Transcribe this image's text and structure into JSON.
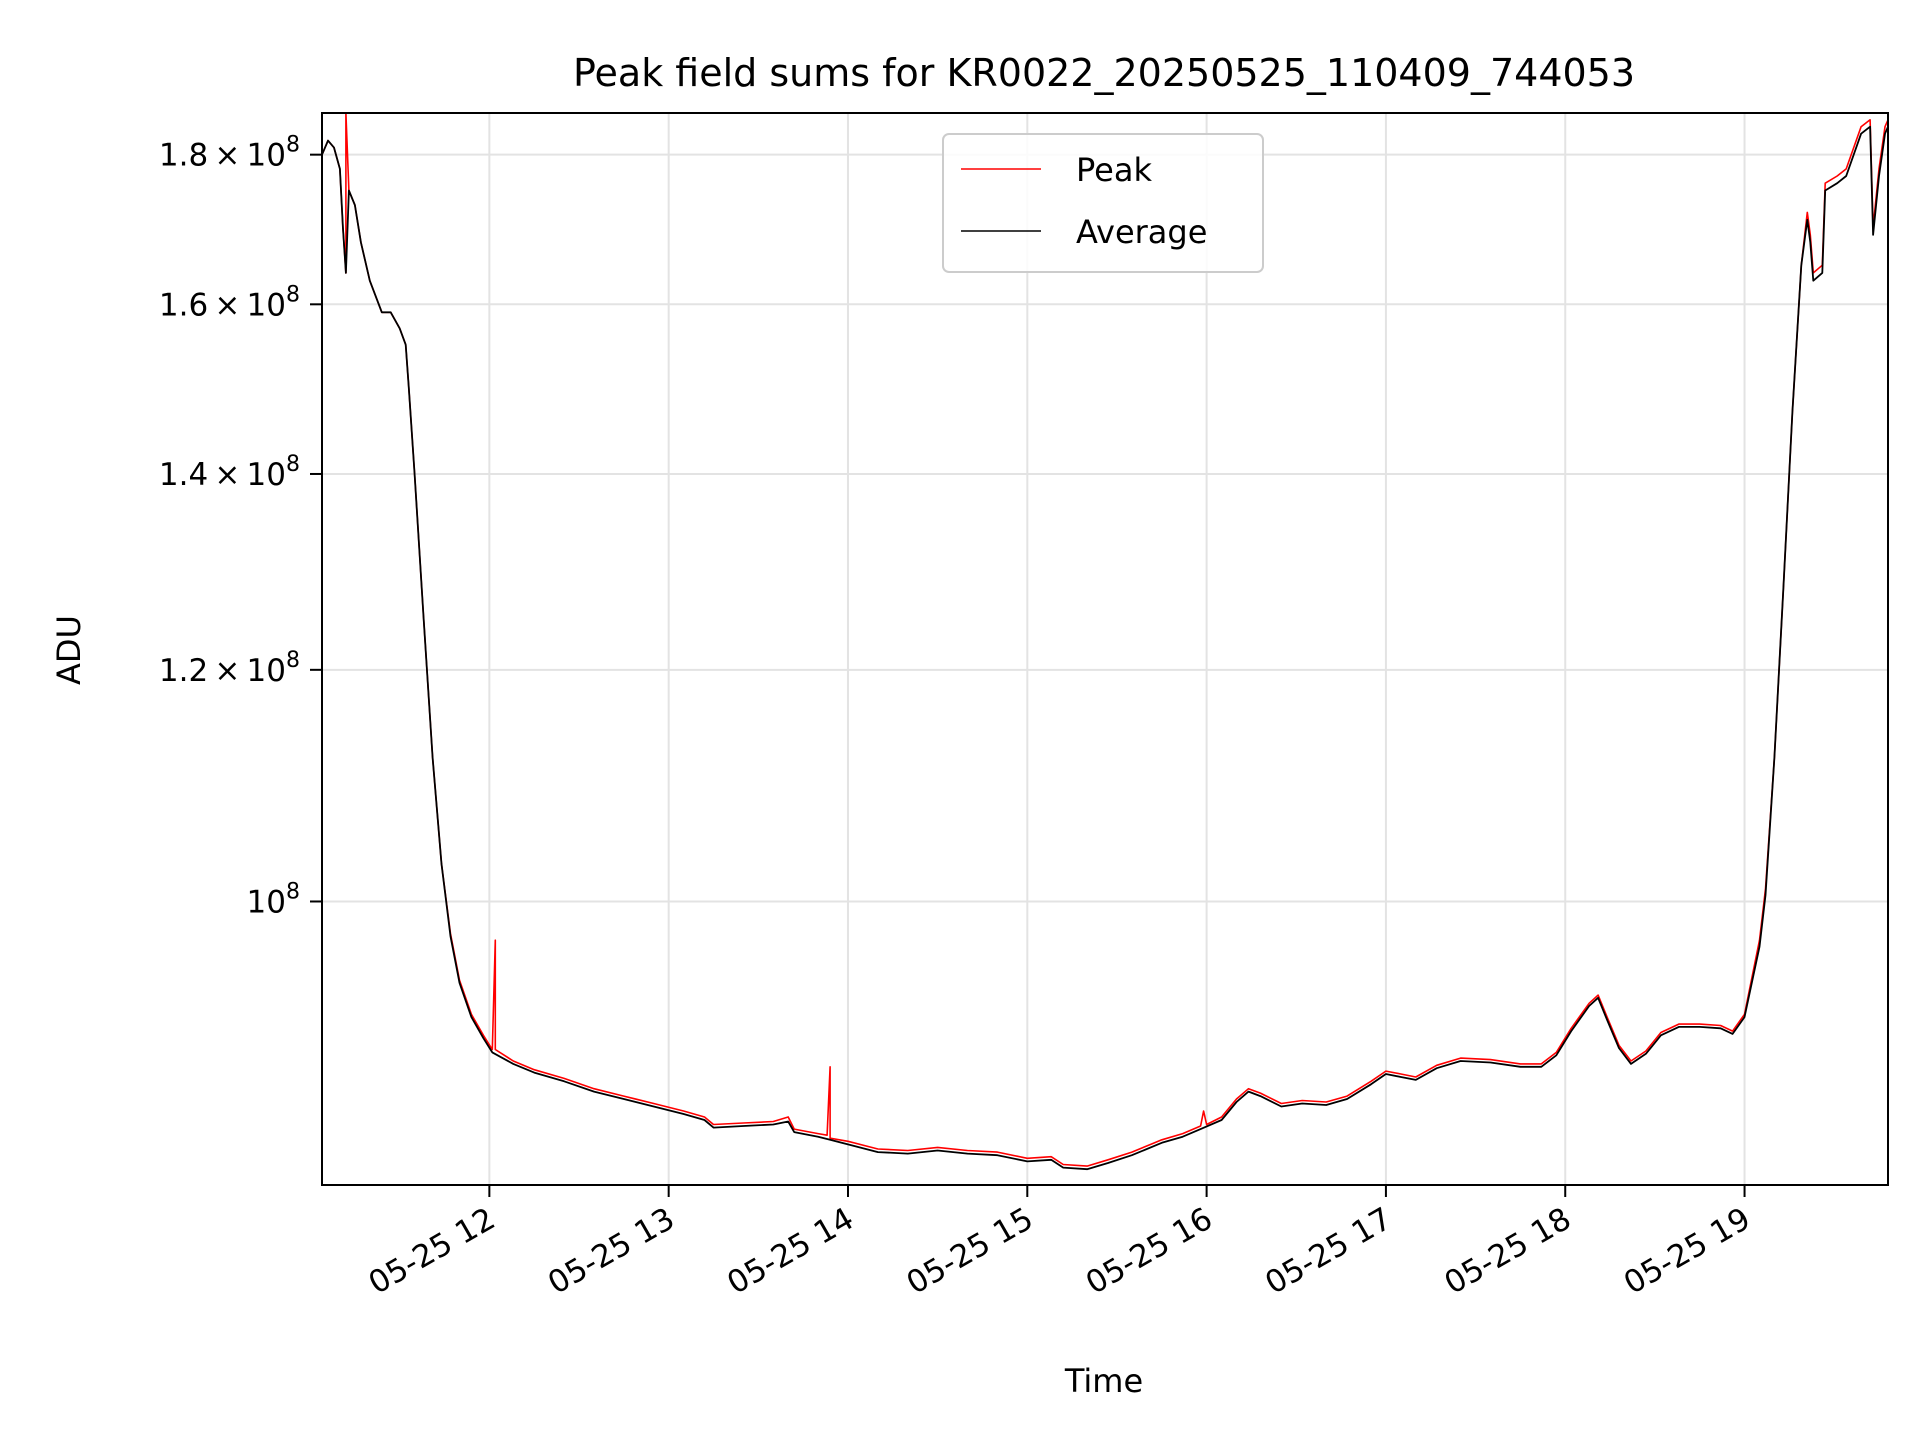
{
  "chart_data": {
    "type": "line",
    "title": "Peak field sums for KR0022_20250525_110409_744053",
    "xlabel": "Time",
    "ylabel": "ADU",
    "yscale": "log",
    "xlim": [
      "2025-05-25 11:04",
      "2025-05-25 19:48"
    ],
    "ylim": [
      80000000,
      186000000
    ],
    "grid": true,
    "legend_position": "upper center",
    "x_ticks": [
      {
        "value": "2025-05-25 12:00",
        "label": "05-25 12"
      },
      {
        "value": "2025-05-25 13:00",
        "label": "05-25 13"
      },
      {
        "value": "2025-05-25 14:00",
        "label": "05-25 14"
      },
      {
        "value": "2025-05-25 15:00",
        "label": "05-25 15"
      },
      {
        "value": "2025-05-25 16:00",
        "label": "05-25 16"
      },
      {
        "value": "2025-05-25 17:00",
        "label": "05-25 17"
      },
      {
        "value": "2025-05-25 18:00",
        "label": "05-25 18"
      },
      {
        "value": "2025-05-25 19:00",
        "label": "05-25 19"
      }
    ],
    "y_ticks": [
      {
        "value": 180000000,
        "mantissa": "1.8",
        "exponent": "8"
      },
      {
        "value": 160000000,
        "mantissa": "1.6",
        "exponent": "8"
      },
      {
        "value": 140000000,
        "mantissa": "1.4",
        "exponent": "8"
      },
      {
        "value": 120000000,
        "mantissa": "1.2",
        "exponent": "8"
      },
      {
        "value": 100000000,
        "mantissa": "",
        "exponent": "8"
      }
    ],
    "series": [
      {
        "name": "Peak",
        "color": "#ff0000",
        "points": [
          [
            "2025-05-25 11:04",
            180000000
          ],
          [
            "2025-05-25 11:06",
            182000000
          ],
          [
            "2025-05-25 11:08",
            181000000
          ],
          [
            "2025-05-25 11:10",
            178000000
          ],
          [
            "2025-05-25 11:11",
            170000000
          ],
          [
            "2025-05-25 11:12",
            164000000
          ],
          [
            "2025-05-25 11:12",
            186000000
          ],
          [
            "2025-05-25 11:13",
            175000000
          ],
          [
            "2025-05-25 11:15",
            173000000
          ],
          [
            "2025-05-25 11:17",
            168000000
          ],
          [
            "2025-05-25 11:20",
            163000000
          ],
          [
            "2025-05-25 11:24",
            159000000
          ],
          [
            "2025-05-25 11:27",
            159000000
          ],
          [
            "2025-05-25 11:30",
            157000000
          ],
          [
            "2025-05-25 11:32",
            155000000
          ],
          [
            "2025-05-25 11:33",
            150000000
          ],
          [
            "2025-05-25 11:35",
            140000000
          ],
          [
            "2025-05-25 11:38",
            125000000
          ],
          [
            "2025-05-25 11:41",
            112000000
          ],
          [
            "2025-05-25 11:44",
            103000000
          ],
          [
            "2025-05-25 11:47",
            97500000
          ],
          [
            "2025-05-25 11:50",
            94000000
          ],
          [
            "2025-05-25 11:54",
            91500000
          ],
          [
            "2025-05-25 11:58",
            90000000
          ],
          [
            "2025-05-25 12:01",
            89000000
          ],
          [
            "2025-05-25 12:02",
            97000000
          ],
          [
            "2025-05-25 12:02",
            89000000
          ],
          [
            "2025-05-25 12:08",
            88200000
          ],
          [
            "2025-05-25 12:15",
            87600000
          ],
          [
            "2025-05-25 12:25",
            87000000
          ],
          [
            "2025-05-25 12:35",
            86300000
          ],
          [
            "2025-05-25 12:45",
            85800000
          ],
          [
            "2025-05-25 12:55",
            85300000
          ],
          [
            "2025-05-25 13:05",
            84800000
          ],
          [
            "2025-05-25 13:12",
            84400000
          ],
          [
            "2025-05-25 13:15",
            83900000
          ],
          [
            "2025-05-25 13:25",
            84000000
          ],
          [
            "2025-05-25 13:35",
            84100000
          ],
          [
            "2025-05-25 13:40",
            84400000
          ],
          [
            "2025-05-25 13:42",
            83600000
          ],
          [
            "2025-05-25 13:50",
            83300000
          ],
          [
            "2025-05-25 13:53",
            83200000
          ],
          [
            "2025-05-25 13:54",
            87800000
          ],
          [
            "2025-05-25 13:54",
            83000000
          ],
          [
            "2025-05-25 14:00",
            82800000
          ],
          [
            "2025-05-25 14:10",
            82300000
          ],
          [
            "2025-05-25 14:20",
            82200000
          ],
          [
            "2025-05-25 14:30",
            82400000
          ],
          [
            "2025-05-25 14:40",
            82200000
          ],
          [
            "2025-05-25 14:50",
            82100000
          ],
          [
            "2025-05-25 15:00",
            81700000
          ],
          [
            "2025-05-25 15:08",
            81800000
          ],
          [
            "2025-05-25 15:12",
            81300000
          ],
          [
            "2025-05-25 15:20",
            81200000
          ],
          [
            "2025-05-25 15:27",
            81600000
          ],
          [
            "2025-05-25 15:35",
            82100000
          ],
          [
            "2025-05-25 15:45",
            82900000
          ],
          [
            "2025-05-25 15:52",
            83300000
          ],
          [
            "2025-05-25 15:58",
            83800000
          ],
          [
            "2025-05-25 15:59",
            84800000
          ],
          [
            "2025-05-25 16:00",
            83900000
          ],
          [
            "2025-05-25 16:05",
            84400000
          ],
          [
            "2025-05-25 16:10",
            85600000
          ],
          [
            "2025-05-25 16:14",
            86300000
          ],
          [
            "2025-05-25 16:18",
            86000000
          ],
          [
            "2025-05-25 16:25",
            85300000
          ],
          [
            "2025-05-25 16:32",
            85500000
          ],
          [
            "2025-05-25 16:40",
            85400000
          ],
          [
            "2025-05-25 16:47",
            85800000
          ],
          [
            "2025-05-25 16:55",
            86800000
          ],
          [
            "2025-05-25 17:00",
            87500000
          ],
          [
            "2025-05-25 17:05",
            87300000
          ],
          [
            "2025-05-25 17:10",
            87100000
          ],
          [
            "2025-05-25 17:17",
            87900000
          ],
          [
            "2025-05-25 17:25",
            88400000
          ],
          [
            "2025-05-25 17:35",
            88300000
          ],
          [
            "2025-05-25 17:45",
            88000000
          ],
          [
            "2025-05-25 17:52",
            88000000
          ],
          [
            "2025-05-25 17:57",
            88800000
          ],
          [
            "2025-05-25 18:02",
            90500000
          ],
          [
            "2025-05-25 18:08",
            92300000
          ],
          [
            "2025-05-25 18:11",
            92900000
          ],
          [
            "2025-05-25 18:14",
            91300000
          ],
          [
            "2025-05-25 18:18",
            89300000
          ],
          [
            "2025-05-25 18:22",
            88200000
          ],
          [
            "2025-05-25 18:27",
            88900000
          ],
          [
            "2025-05-25 18:32",
            90200000
          ],
          [
            "2025-05-25 18:38",
            90800000
          ],
          [
            "2025-05-25 18:45",
            90800000
          ],
          [
            "2025-05-25 18:52",
            90700000
          ],
          [
            "2025-05-25 18:56",
            90300000
          ],
          [
            "2025-05-25 19:00",
            91500000
          ],
          [
            "2025-05-25 19:05",
            97000000
          ],
          [
            "2025-05-25 19:07",
            101000000
          ],
          [
            "2025-05-25 19:10",
            112000000
          ],
          [
            "2025-05-25 19:13",
            128000000
          ],
          [
            "2025-05-25 19:16",
            147000000
          ],
          [
            "2025-05-25 19:19",
            165000000
          ],
          [
            "2025-05-25 19:21",
            172000000
          ],
          [
            "2025-05-25 19:22",
            169000000
          ],
          [
            "2025-05-25 19:23",
            164000000
          ],
          [
            "2025-05-25 19:26",
            165000000
          ],
          [
            "2025-05-25 19:27",
            176000000
          ],
          [
            "2025-05-25 19:31",
            177000000
          ],
          [
            "2025-05-25 19:34",
            178000000
          ],
          [
            "2025-05-25 19:39",
            184000000
          ],
          [
            "2025-05-25 19:42",
            185000000
          ],
          [
            "2025-05-25 19:43",
            170000000
          ],
          [
            "2025-05-25 19:45",
            178000000
          ],
          [
            "2025-05-25 19:47",
            184000000
          ],
          [
            "2025-05-25 19:48",
            185000000
          ]
        ]
      },
      {
        "name": "Average",
        "color": "#000000",
        "points": [
          [
            "2025-05-25 11:04",
            180000000
          ],
          [
            "2025-05-25 11:06",
            182000000
          ],
          [
            "2025-05-25 11:08",
            181000000
          ],
          [
            "2025-05-25 11:10",
            178000000
          ],
          [
            "2025-05-25 11:11",
            170000000
          ],
          [
            "2025-05-25 11:12",
            164000000
          ],
          [
            "2025-05-25 11:13",
            175000000
          ],
          [
            "2025-05-25 11:15",
            173000000
          ],
          [
            "2025-05-25 11:17",
            168000000
          ],
          [
            "2025-05-25 11:20",
            163000000
          ],
          [
            "2025-05-25 11:24",
            159000000
          ],
          [
            "2025-05-25 11:27",
            159000000
          ],
          [
            "2025-05-25 11:30",
            157000000
          ],
          [
            "2025-05-25 11:32",
            155000000
          ],
          [
            "2025-05-25 11:33",
            150000000
          ],
          [
            "2025-05-25 11:35",
            140000000
          ],
          [
            "2025-05-25 11:38",
            125000000
          ],
          [
            "2025-05-25 11:41",
            112000000
          ],
          [
            "2025-05-25 11:44",
            103000000
          ],
          [
            "2025-05-25 11:47",
            97300000
          ],
          [
            "2025-05-25 11:50",
            93800000
          ],
          [
            "2025-05-25 11:54",
            91300000
          ],
          [
            "2025-05-25 11:58",
            89800000
          ],
          [
            "2025-05-25 12:01",
            88800000
          ],
          [
            "2025-05-25 12:08",
            88000000
          ],
          [
            "2025-05-25 12:15",
            87400000
          ],
          [
            "2025-05-25 12:25",
            86800000
          ],
          [
            "2025-05-25 12:35",
            86100000
          ],
          [
            "2025-05-25 12:45",
            85600000
          ],
          [
            "2025-05-25 12:55",
            85100000
          ],
          [
            "2025-05-25 13:05",
            84600000
          ],
          [
            "2025-05-25 13:12",
            84200000
          ],
          [
            "2025-05-25 13:15",
            83700000
          ],
          [
            "2025-05-25 13:25",
            83800000
          ],
          [
            "2025-05-25 13:35",
            83900000
          ],
          [
            "2025-05-25 13:40",
            84100000
          ],
          [
            "2025-05-25 13:42",
            83400000
          ],
          [
            "2025-05-25 13:50",
            83100000
          ],
          [
            "2025-05-25 13:54",
            82900000
          ],
          [
            "2025-05-25 14:00",
            82600000
          ],
          [
            "2025-05-25 14:10",
            82100000
          ],
          [
            "2025-05-25 14:20",
            82000000
          ],
          [
            "2025-05-25 14:30",
            82200000
          ],
          [
            "2025-05-25 14:40",
            82000000
          ],
          [
            "2025-05-25 14:50",
            81900000
          ],
          [
            "2025-05-25 15:00",
            81500000
          ],
          [
            "2025-05-25 15:08",
            81600000
          ],
          [
            "2025-05-25 15:12",
            81100000
          ],
          [
            "2025-05-25 15:20",
            81000000
          ],
          [
            "2025-05-25 15:27",
            81400000
          ],
          [
            "2025-05-25 15:35",
            81900000
          ],
          [
            "2025-05-25 15:45",
            82700000
          ],
          [
            "2025-05-25 15:52",
            83100000
          ],
          [
            "2025-05-25 15:58",
            83600000
          ],
          [
            "2025-05-25 16:05",
            84200000
          ],
          [
            "2025-05-25 16:10",
            85400000
          ],
          [
            "2025-05-25 16:14",
            86100000
          ],
          [
            "2025-05-25 16:18",
            85800000
          ],
          [
            "2025-05-25 16:25",
            85100000
          ],
          [
            "2025-05-25 16:32",
            85300000
          ],
          [
            "2025-05-25 16:40",
            85200000
          ],
          [
            "2025-05-25 16:47",
            85600000
          ],
          [
            "2025-05-25 16:55",
            86600000
          ],
          [
            "2025-05-25 17:00",
            87300000
          ],
          [
            "2025-05-25 17:05",
            87100000
          ],
          [
            "2025-05-25 17:10",
            86900000
          ],
          [
            "2025-05-25 17:17",
            87700000
          ],
          [
            "2025-05-25 17:25",
            88200000
          ],
          [
            "2025-05-25 17:35",
            88100000
          ],
          [
            "2025-05-25 17:45",
            87800000
          ],
          [
            "2025-05-25 17:52",
            87800000
          ],
          [
            "2025-05-25 17:57",
            88600000
          ],
          [
            "2025-05-25 18:02",
            90300000
          ],
          [
            "2025-05-25 18:08",
            92100000
          ],
          [
            "2025-05-25 18:11",
            92700000
          ],
          [
            "2025-05-25 18:14",
            91100000
          ],
          [
            "2025-05-25 18:18",
            89100000
          ],
          [
            "2025-05-25 18:22",
            88000000
          ],
          [
            "2025-05-25 18:27",
            88700000
          ],
          [
            "2025-05-25 18:32",
            90000000
          ],
          [
            "2025-05-25 18:38",
            90600000
          ],
          [
            "2025-05-25 18:45",
            90600000
          ],
          [
            "2025-05-25 18:52",
            90500000
          ],
          [
            "2025-05-25 18:56",
            90100000
          ],
          [
            "2025-05-25 19:00",
            91300000
          ],
          [
            "2025-05-25 19:05",
            96500000
          ],
          [
            "2025-05-25 19:07",
            100500000
          ],
          [
            "2025-05-25 19:10",
            112000000
          ],
          [
            "2025-05-25 19:13",
            128000000
          ],
          [
            "2025-05-25 19:16",
            147000000
          ],
          [
            "2025-05-25 19:19",
            165000000
          ],
          [
            "2025-05-25 19:21",
            171000000
          ],
          [
            "2025-05-25 19:22",
            168000000
          ],
          [
            "2025-05-25 19:23",
            163000000
          ],
          [
            "2025-05-25 19:26",
            164000000
          ],
          [
            "2025-05-25 19:27",
            175000000
          ],
          [
            "2025-05-25 19:31",
            176000000
          ],
          [
            "2025-05-25 19:34",
            177000000
          ],
          [
            "2025-05-25 19:39",
            183000000
          ],
          [
            "2025-05-25 19:42",
            184000000
          ],
          [
            "2025-05-25 19:43",
            169000000
          ],
          [
            "2025-05-25 19:45",
            177000000
          ],
          [
            "2025-05-25 19:47",
            183000000
          ],
          [
            "2025-05-25 19:48",
            184000000
          ]
        ]
      }
    ]
  }
}
